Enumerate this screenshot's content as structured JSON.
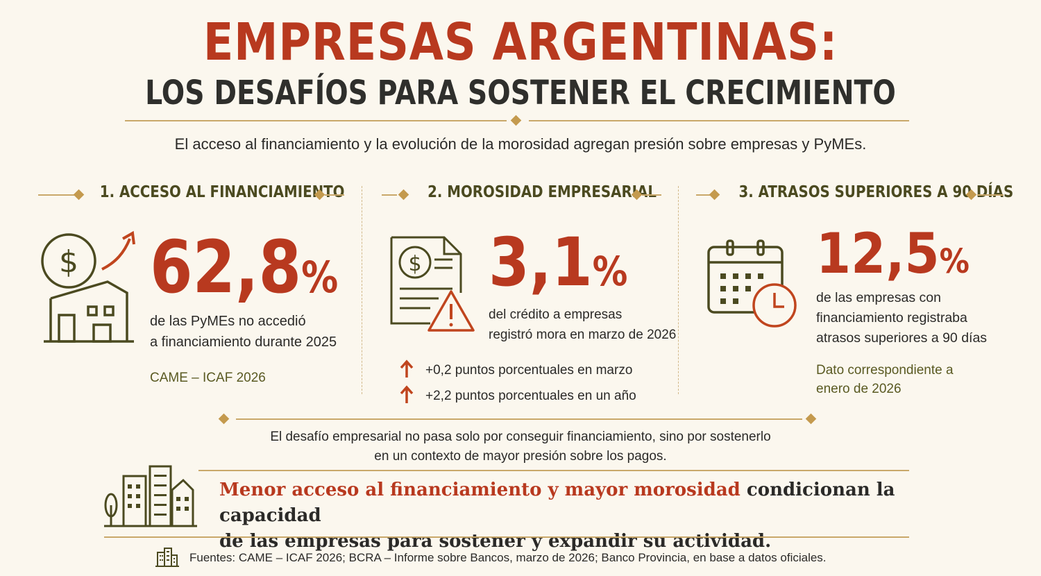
{
  "header": {
    "title": "EMPRESAS ARGENTINAS:",
    "subtitle": "LOS DESAFÍOS PARA SOSTENER EL CRECIMIENTO",
    "lead": "El acceso al financiamiento y la evolución de la morosidad agregan presión sobre empresas y PyMEs."
  },
  "sections": [
    {
      "heading": "1. ACCESO AL FINANCIAMIENTO",
      "value": "62,8",
      "unit": "%",
      "desc_line1": "de las PyMEs no accedió",
      "desc_line2": "a financiamiento durante 2025",
      "note": "CAME – ICAF 2026",
      "icon": "house-money-growth-icon"
    },
    {
      "heading": "2. MOROSIDAD EMPRESARIAL",
      "value": "3,1",
      "unit": "%",
      "desc_line1": "del crédito a empresas",
      "desc_line2": "registró mora en marzo de 2026",
      "bullets": [
        "+0,2 puntos porcentuales en marzo",
        "+2,2 puntos porcentuales en un año"
      ],
      "icon": "document-warning-icon"
    },
    {
      "heading": "3. ATRASOS SUPERIORES A 90 DÍAS",
      "value": "12,5",
      "unit": "%",
      "desc_line1": "de las empresas con",
      "desc_line2": "financiamiento registraba",
      "desc_line3": "atrasos superiores a 90 días",
      "note_line1": "Dato correspondiente a",
      "note_line2": "enero de 2026",
      "icon": "calendar-clock-icon"
    }
  ],
  "challenge": {
    "line1": "El desafío empresarial no pasa solo por conseguir financiamiento, sino por sostenerlo",
    "line2": "en un contexto de mayor presión sobre los pagos."
  },
  "conclusion": {
    "highlight": "Menor acceso al financiamiento y mayor morosidad",
    "rest_line1": " condicionan la capacidad",
    "rest_line2": "de las empresas para sostener y expandir su actividad."
  },
  "footer": {
    "sources": "Fuentes: CAME – ICAF 2026; BCRA – Informe sobre Bancos, marzo de 2026; Banco Provincia, en base a datos oficiales."
  },
  "colors": {
    "accent": "#b8391f",
    "olive": "#4b4a20",
    "gold": "#c49a4e",
    "background": "#fbf7ee"
  }
}
